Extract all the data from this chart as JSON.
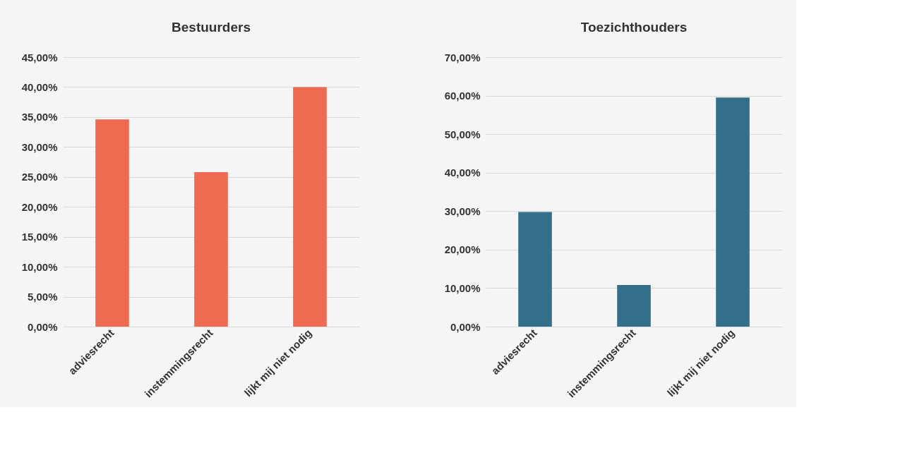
{
  "chart_data": [
    {
      "type": "bar",
      "title": "Bestuurders",
      "categories": [
        "adviesrecht",
        "instemmingsrecht",
        "lijkt mij niet nodig"
      ],
      "series": [
        {
          "color": "#ee6a50",
          "values": [
            34.6,
            25.8,
            40.0
          ]
        }
      ],
      "ylim": [
        0,
        45
      ],
      "yticks": [
        {
          "value": 0,
          "label": "0,00%"
        },
        {
          "value": 5,
          "label": "5,00%"
        },
        {
          "value": 10,
          "label": "10,00%"
        },
        {
          "value": 15,
          "label": "15,00%"
        },
        {
          "value": 20,
          "label": "20,00%"
        },
        {
          "value": 25,
          "label": "25,00%"
        },
        {
          "value": 30,
          "label": "30,00%"
        },
        {
          "value": 35,
          "label": "35,00%"
        },
        {
          "value": 40,
          "label": "40,00%"
        },
        {
          "value": 45,
          "label": "45,00%"
        }
      ],
      "grid": "y"
    },
    {
      "type": "bar",
      "title": "Toezichthouders",
      "categories": [
        "adviesrecht",
        "instemmingsrecht",
        "lijkt mij niet nodig"
      ],
      "series": [
        {
          "color": "#336e8a",
          "values": [
            29.8,
            10.8,
            59.5
          ]
        }
      ],
      "ylim": [
        0,
        70
      ],
      "yticks": [
        {
          "value": 0,
          "label": "0,00%"
        },
        {
          "value": 10,
          "label": "10,00%"
        },
        {
          "value": 20,
          "label": "20,00%"
        },
        {
          "value": 30,
          "label": "30,00%"
        },
        {
          "value": 40,
          "label": "40,00%"
        },
        {
          "value": 50,
          "label": "50,00%"
        },
        {
          "value": 60,
          "label": "60,00%"
        },
        {
          "value": 70,
          "label": "70,00%"
        }
      ],
      "grid": "y"
    }
  ]
}
